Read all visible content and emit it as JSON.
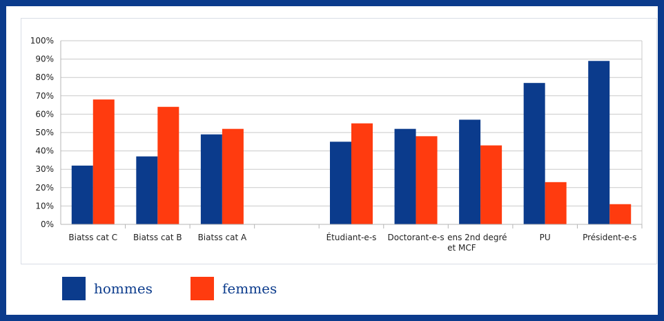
{
  "chart_data": {
    "type": "bar",
    "categories": [
      [
        "Biatss cat C"
      ],
      [
        "Biatss cat B"
      ],
      [
        "Biatss cat A"
      ],
      [
        ""
      ],
      [
        "Étudiant-e-s"
      ],
      [
        "Doctorant-e-s"
      ],
      [
        "ens 2nd degré",
        "et MCF"
      ],
      [
        "PU"
      ],
      [
        "Président-e-s"
      ]
    ],
    "series": [
      {
        "name": "hommes",
        "color": "#0b3b8c",
        "values": [
          32,
          37,
          49,
          null,
          45,
          52,
          57,
          77,
          89
        ]
      },
      {
        "name": "femmes",
        "color": "#ff3b0f",
        "values": [
          68,
          64,
          52,
          null,
          55,
          48,
          43,
          23,
          11
        ]
      }
    ],
    "ylim": [
      0,
      100
    ],
    "yticks": [
      "0%",
      "10%",
      "20%",
      "30%",
      "40%",
      "50%",
      "60%",
      "70%",
      "80%",
      "90%",
      "100%"
    ],
    "grid": true,
    "legend_position": "bottom-left"
  }
}
